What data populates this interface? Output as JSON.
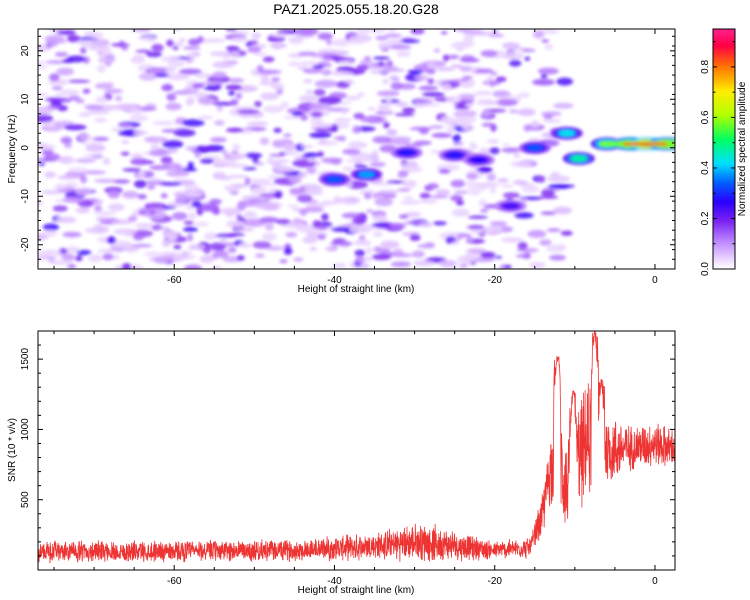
{
  "title": "PAZ1.2025.055.18.20.G28",
  "chart_data": [
    {
      "type": "heatmap",
      "name": "spectrogram",
      "xlabel": "Height of straight line (km)",
      "ylabel": "Frequency (Hz)",
      "xlim": [
        -77,
        2.5
      ],
      "ylim": [
        -25,
        24.5
      ],
      "xticks": [
        -60,
        -40,
        -20,
        0
      ],
      "yticks": [
        -20,
        -10,
        0,
        10,
        20
      ],
      "colorbar": {
        "label": "Normalized spectral amplitude",
        "range": [
          0.0,
          0.95
        ],
        "ticks": [
          0.0,
          0.2,
          0.4,
          0.6,
          0.8
        ],
        "tick_labels": [
          "0.0",
          "0.2",
          "0.4",
          "0.6",
          "0.8"
        ],
        "colors": [
          "#ffffff",
          "#e6ccff",
          "#b980ff",
          "#7a22f0",
          "#2a00ff",
          "#0060ff",
          "#00e0ff",
          "#00ff60",
          "#b0ff00",
          "#ffee00",
          "#ff7700",
          "#ff0044",
          "#ff2090"
        ]
      },
      "features": [
        {
          "x": -40,
          "y": -6.5,
          "v": 0.35
        },
        {
          "x": -36,
          "y": -5.5,
          "v": 0.4
        },
        {
          "x": -31,
          "y": -1,
          "v": 0.3
        },
        {
          "x": -25,
          "y": -1.5,
          "v": 0.3
        },
        {
          "x": -22,
          "y": -2.5,
          "v": 0.28
        },
        {
          "x": -18,
          "y": -12,
          "v": 0.25
        },
        {
          "x": -15,
          "y": 0,
          "v": 0.35
        },
        {
          "x": -11,
          "y": 3,
          "v": 0.45
        },
        {
          "x": -9.5,
          "y": -2.2,
          "v": 0.5
        },
        {
          "x": -6,
          "y": 0.8,
          "v": 0.55
        },
        {
          "x": -3,
          "y": 0.8,
          "v": 0.75
        },
        {
          "x": -1,
          "y": 0.8,
          "v": 0.95
        },
        {
          "x": 1.5,
          "y": 0.8,
          "v": 0.8
        }
      ]
    },
    {
      "type": "line",
      "name": "snr",
      "xlabel": "Height of straight line (km)",
      "ylabel": "SNR (10 * v/v)",
      "xlim": [
        -77,
        2.5
      ],
      "ylim": [
        0,
        1700
      ],
      "xticks": [
        -60,
        -40,
        -20,
        0
      ],
      "yticks": [
        500,
        1000,
        1500
      ],
      "color": "#ee3333",
      "envelope": [
        {
          "x": -77,
          "mean": 130,
          "spread": 70
        },
        {
          "x": -45,
          "mean": 140,
          "spread": 70
        },
        {
          "x": -35,
          "mean": 170,
          "spread": 90
        },
        {
          "x": -29,
          "mean": 200,
          "spread": 130
        },
        {
          "x": -20,
          "mean": 140,
          "spread": 60
        },
        {
          "x": -15.5,
          "mean": 160,
          "spread": 70
        },
        {
          "x": -14,
          "mean": 400,
          "spread": 150
        },
        {
          "x": -13,
          "mean": 750,
          "spread": 250
        },
        {
          "x": -12,
          "mean": 800,
          "spread": 350
        },
        {
          "x": -11,
          "mean": 600,
          "spread": 350
        },
        {
          "x": -10,
          "mean": 750,
          "spread": 350
        },
        {
          "x": -8,
          "mean": 950,
          "spread": 400
        },
        {
          "x": -6,
          "mean": 850,
          "spread": 250
        },
        {
          "x": -3,
          "mean": 870,
          "spread": 150
        },
        {
          "x": 0,
          "mean": 900,
          "spread": 150
        },
        {
          "x": 2.5,
          "mean": 860,
          "spread": 130
        }
      ],
      "peaks": [
        {
          "x": -12.2,
          "y": 1520
        },
        {
          "x": -7.5,
          "y": 1700
        },
        {
          "x": -10.2,
          "y": 1280
        },
        {
          "x": -6.7,
          "y": 1360
        }
      ]
    }
  ]
}
